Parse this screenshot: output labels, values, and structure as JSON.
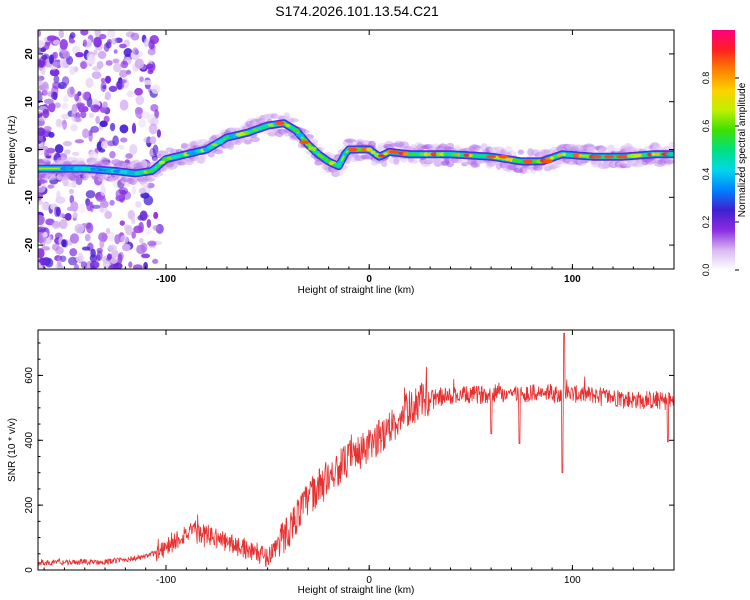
{
  "title": "S174.2026.101.13.54.C21",
  "chart_data": [
    {
      "type": "heatmap",
      "xlabel": "Height of straight line (km)",
      "ylabel": "Frequency (Hz)",
      "xlim": [
        -163,
        150
      ],
      "ylim": [
        -25,
        25
      ],
      "xticks": [
        -100,
        0,
        100
      ],
      "xtick_labels": [
        "-100",
        "0",
        "100"
      ],
      "yticks": [
        -20,
        -10,
        0,
        10,
        20
      ],
      "ytick_labels": [
        "-20",
        "-10",
        "0",
        "10",
        "20"
      ],
      "ridge": [
        [
          -163,
          -4
        ],
        [
          -140,
          -4
        ],
        [
          -125,
          -4.5
        ],
        [
          -115,
          -5
        ],
        [
          -107,
          -4.5
        ],
        [
          -100,
          -2
        ],
        [
          -90,
          -1
        ],
        [
          -80,
          0
        ],
        [
          -70,
          2.5
        ],
        [
          -60,
          3.5
        ],
        [
          -50,
          5
        ],
        [
          -42,
          5.5
        ],
        [
          -36,
          4
        ],
        [
          -30,
          1
        ],
        [
          -25,
          -1
        ],
        [
          -20,
          -2.5
        ],
        [
          -15,
          -3.5
        ],
        [
          -12,
          -1
        ],
        [
          -10,
          0
        ],
        [
          -5,
          0
        ],
        [
          0,
          0
        ],
        [
          5,
          -1.5
        ],
        [
          10,
          -0.5
        ],
        [
          20,
          -1
        ],
        [
          40,
          -1
        ],
        [
          60,
          -1.5
        ],
        [
          75,
          -2.5
        ],
        [
          85,
          -2.5
        ],
        [
          95,
          -1
        ],
        [
          110,
          -1.5
        ],
        [
          125,
          -1.5
        ],
        [
          140,
          -1
        ],
        [
          150,
          -1
        ]
      ],
      "colorbar": {
        "label": "Normalized spectral amplitude",
        "ticks": [
          0.0,
          0.2,
          0.4,
          0.6,
          0.8
        ],
        "tick_labels": [
          "0.0",
          "0.2",
          "0.4",
          "0.6",
          "0.8"
        ],
        "colors": [
          "#ffffff",
          "#d8b8f0",
          "#8a2be2",
          "#4020d0",
          "#0080ff",
          "#00d8e8",
          "#00e080",
          "#40e000",
          "#c0f000",
          "#ffd000",
          "#ff8000",
          "#ff2020",
          "#ff0080"
        ]
      }
    },
    {
      "type": "line",
      "xlabel": "Height of straight line (km)",
      "ylabel": "SNR (10 * v/v)",
      "xlim": [
        -163,
        150
      ],
      "ylim": [
        0,
        740
      ],
      "xticks": [
        -100,
        0,
        100
      ],
      "xtick_labels": [
        "-100",
        "0",
        "100"
      ],
      "yticks": [
        0,
        200,
        400,
        600
      ],
      "ytick_labels": [
        "0",
        "200",
        "400",
        "600"
      ],
      "color": "#e83030",
      "trend": [
        [
          -163,
          22
        ],
        [
          -130,
          25
        ],
        [
          -110,
          40
        ],
        [
          -100,
          70
        ],
        [
          -90,
          115
        ],
        [
          -80,
          110
        ],
        [
          -70,
          85
        ],
        [
          -60,
          65
        ],
        [
          -50,
          40
        ],
        [
          -40,
          120
        ],
        [
          -30,
          220
        ],
        [
          -20,
          290
        ],
        [
          -10,
          340
        ],
        [
          0,
          380
        ],
        [
          10,
          440
        ],
        [
          20,
          500
        ],
        [
          30,
          530
        ],
        [
          50,
          540
        ],
        [
          70,
          545
        ],
        [
          90,
          545
        ],
        [
          110,
          540
        ],
        [
          130,
          525
        ],
        [
          150,
          520
        ]
      ],
      "spikes": [
        {
          "x": 60,
          "y": 420
        },
        {
          "x": 74,
          "y": 390
        },
        {
          "x": 95,
          "y": 300
        },
        {
          "x": 96,
          "y": 730
        },
        {
          "x": 147,
          "y": 395
        }
      ]
    }
  ]
}
